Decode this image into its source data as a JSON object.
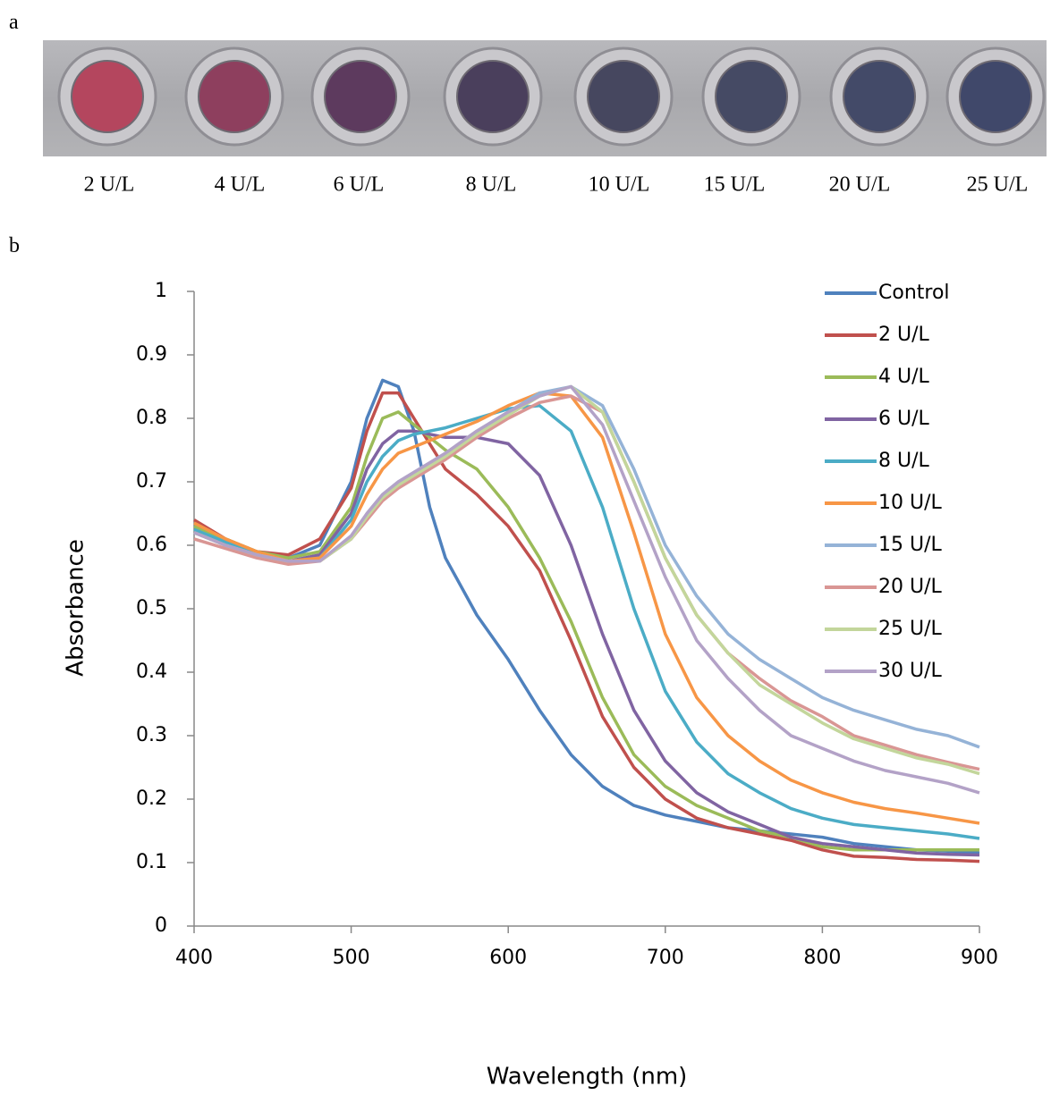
{
  "panel_a": {
    "label": "a",
    "wells": [
      "2 U/L",
      "4 U/L",
      "6 U/L",
      "8 U/L",
      "10 U/L",
      "15 U/L",
      "20 U/L",
      "25 U/L"
    ]
  },
  "panel_b": {
    "label": "b"
  },
  "chart_data": {
    "type": "line",
    "x_label": "Wavelength (nm)",
    "y_label": "Absorbance",
    "x": [
      400,
      420,
      440,
      460,
      480,
      500,
      510,
      520,
      530,
      540,
      550,
      560,
      580,
      600,
      620,
      640,
      660,
      680,
      700,
      720,
      740,
      760,
      780,
      800,
      820,
      840,
      860,
      880,
      900
    ],
    "xlim": [
      400,
      900
    ],
    "xticks": [
      400,
      500,
      600,
      700,
      800,
      900
    ],
    "ylim": [
      0,
      1
    ],
    "yticks": [
      0,
      0.1,
      0.2,
      0.3,
      0.4,
      0.5,
      0.6,
      0.7,
      0.8,
      0.9,
      1
    ],
    "legend": "top-right",
    "series": [
      {
        "name": "Control",
        "color": "#4f81bd",
        "values": [
          0.62,
          0.6,
          0.59,
          0.58,
          0.6,
          0.7,
          0.8,
          0.86,
          0.85,
          0.78,
          0.66,
          0.58,
          0.49,
          0.42,
          0.34,
          0.27,
          0.22,
          0.19,
          0.175,
          0.165,
          0.155,
          0.15,
          0.145,
          0.14,
          0.13,
          0.125,
          0.12,
          0.118,
          0.115
        ]
      },
      {
        "name": "2 U/L",
        "color": "#c0504d",
        "values": [
          0.64,
          0.61,
          0.59,
          0.585,
          0.61,
          0.69,
          0.78,
          0.84,
          0.84,
          0.8,
          0.76,
          0.72,
          0.68,
          0.63,
          0.56,
          0.45,
          0.33,
          0.25,
          0.2,
          0.17,
          0.155,
          0.145,
          0.135,
          0.12,
          0.11,
          0.108,
          0.105,
          0.104,
          0.102
        ]
      },
      {
        "name": "4 U/L",
        "color": "#9bbb59",
        "values": [
          0.63,
          0.61,
          0.59,
          0.58,
          0.59,
          0.66,
          0.74,
          0.8,
          0.81,
          0.79,
          0.77,
          0.75,
          0.72,
          0.66,
          0.58,
          0.48,
          0.36,
          0.27,
          0.22,
          0.19,
          0.17,
          0.15,
          0.14,
          0.125,
          0.12,
          0.12,
          0.12,
          0.12,
          0.12
        ]
      },
      {
        "name": "6 U/L",
        "color": "#8064a2",
        "values": [
          0.62,
          0.6,
          0.585,
          0.575,
          0.585,
          0.65,
          0.72,
          0.76,
          0.78,
          0.78,
          0.775,
          0.77,
          0.77,
          0.76,
          0.71,
          0.6,
          0.46,
          0.34,
          0.26,
          0.21,
          0.18,
          0.16,
          0.14,
          0.13,
          0.125,
          0.12,
          0.115,
          0.113,
          0.112
        ]
      },
      {
        "name": "8 U/L",
        "color": "#4bacc6",
        "values": [
          0.625,
          0.605,
          0.585,
          0.575,
          0.58,
          0.64,
          0.7,
          0.74,
          0.765,
          0.775,
          0.78,
          0.785,
          0.8,
          0.815,
          0.82,
          0.78,
          0.66,
          0.5,
          0.37,
          0.29,
          0.24,
          0.21,
          0.185,
          0.17,
          0.16,
          0.155,
          0.15,
          0.145,
          0.138
        ]
      },
      {
        "name": "10 U/L",
        "color": "#f79646",
        "values": [
          0.635,
          0.61,
          0.59,
          0.575,
          0.58,
          0.63,
          0.68,
          0.72,
          0.745,
          0.755,
          0.765,
          0.775,
          0.795,
          0.82,
          0.84,
          0.835,
          0.77,
          0.62,
          0.46,
          0.36,
          0.3,
          0.26,
          0.23,
          0.21,
          0.195,
          0.185,
          0.178,
          0.17,
          0.162
        ]
      },
      {
        "name": "15 U/L",
        "color": "#95b3d7",
        "values": [
          0.62,
          0.6,
          0.585,
          0.575,
          0.575,
          0.61,
          0.65,
          0.68,
          0.7,
          0.715,
          0.73,
          0.745,
          0.78,
          0.81,
          0.84,
          0.85,
          0.82,
          0.72,
          0.6,
          0.52,
          0.46,
          0.42,
          0.39,
          0.36,
          0.34,
          0.325,
          0.31,
          0.3,
          0.282
        ]
      },
      {
        "name": "20 U/L",
        "color": "#d99694",
        "values": [
          0.61,
          0.595,
          0.58,
          0.57,
          0.575,
          0.61,
          0.64,
          0.67,
          0.69,
          0.705,
          0.72,
          0.735,
          0.77,
          0.8,
          0.825,
          0.835,
          0.81,
          0.7,
          0.58,
          0.49,
          0.43,
          0.39,
          0.355,
          0.33,
          0.3,
          0.285,
          0.27,
          0.258,
          0.247
        ]
      },
      {
        "name": "25 U/L",
        "color": "#c3d69b",
        "values": [
          0.62,
          0.6,
          0.585,
          0.575,
          0.575,
          0.61,
          0.645,
          0.675,
          0.695,
          0.71,
          0.725,
          0.74,
          0.775,
          0.805,
          0.835,
          0.85,
          0.81,
          0.7,
          0.58,
          0.49,
          0.43,
          0.38,
          0.35,
          0.32,
          0.295,
          0.28,
          0.265,
          0.255,
          0.24
        ]
      },
      {
        "name": "30 U/L",
        "color": "#b3a2c7",
        "values": [
          0.62,
          0.6,
          0.585,
          0.575,
          0.575,
          0.615,
          0.65,
          0.68,
          0.7,
          0.715,
          0.73,
          0.745,
          0.78,
          0.81,
          0.835,
          0.85,
          0.79,
          0.67,
          0.55,
          0.45,
          0.39,
          0.34,
          0.3,
          0.28,
          0.26,
          0.245,
          0.235,
          0.225,
          0.21
        ]
      }
    ]
  }
}
